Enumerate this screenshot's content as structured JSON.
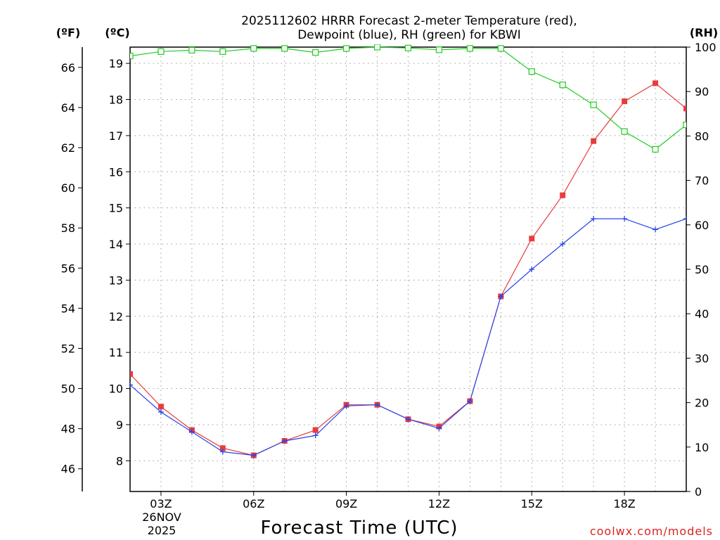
{
  "chart_data": {
    "type": "line",
    "title_line1": "2025112602 HRRR Forecast 2-meter Temperature (red),",
    "title_line2": "Dewpoint (blue), RH (green) for KBWI",
    "xlabel": "Forecast Time (UTC)",
    "credit": "coolwx.com/models",
    "unit_f": "(ºF)",
    "unit_c": "(ºC)",
    "unit_rh": "(RH)",
    "date_label_1": "26NOV",
    "date_label_2": "2025",
    "x_range": [
      2,
      20
    ],
    "x_ticks": [
      3,
      6,
      9,
      12,
      15,
      18
    ],
    "x_tick_labels": [
      "03Z",
      "06Z",
      "09Z",
      "12Z",
      "15Z",
      "18Z"
    ],
    "c_range": [
      7.15,
      19.45
    ],
    "c_ticks": [
      8,
      9,
      10,
      11,
      12,
      13,
      14,
      15,
      16,
      17,
      18,
      19
    ],
    "c_tick_labels": [
      "8",
      "9",
      "10",
      "11",
      "12",
      "13",
      "14",
      "15",
      "16",
      "17",
      "18",
      "19"
    ],
    "f_ticks": [
      46,
      48,
      50,
      52,
      54,
      56,
      58,
      60,
      62,
      64,
      66
    ],
    "f_tick_labels": [
      "46",
      "48",
      "50",
      "52",
      "54",
      "56",
      "58",
      "60",
      "62",
      "64",
      "66"
    ],
    "rh_range": [
      0,
      100
    ],
    "rh_ticks": [
      0,
      10,
      20,
      30,
      40,
      50,
      60,
      70,
      80,
      90,
      100
    ],
    "rh_tick_labels": [
      "0",
      "10",
      "20",
      "30",
      "40",
      "50",
      "60",
      "70",
      "80",
      "90",
      "100"
    ],
    "grid": true,
    "colors": {
      "temperature": "#e83c3c",
      "dewpoint": "#2a45e8",
      "rh": "#22cc22",
      "credit": "#dd2222"
    },
    "x": [
      2,
      3,
      4,
      5,
      6,
      7,
      8,
      9,
      10,
      11,
      12,
      13,
      14,
      15,
      16,
      17,
      18,
      19,
      20
    ],
    "series": [
      {
        "name": "Temperature",
        "axis": "c",
        "marker": "filled-square",
        "values": [
          10.4,
          9.5,
          8.85,
          8.35,
          8.15,
          8.55,
          8.85,
          9.55,
          9.55,
          9.15,
          8.95,
          9.65,
          12.55,
          14.15,
          15.35,
          16.85,
          17.95,
          18.45,
          17.75
        ]
      },
      {
        "name": "Dewpoint",
        "axis": "c",
        "marker": "plus",
        "values": [
          10.1,
          9.35,
          8.8,
          8.25,
          8.15,
          8.55,
          8.7,
          9.52,
          9.55,
          9.15,
          8.9,
          9.65,
          12.55,
          13.3,
          14.0,
          14.7,
          14.7,
          14.4,
          14.7
        ]
      },
      {
        "name": "RH",
        "axis": "rh",
        "marker": "open-square",
        "values": [
          98,
          99,
          99.3,
          99,
          99.7,
          99.7,
          98.8,
          99.7,
          100,
          99.8,
          99.4,
          99.7,
          99.7,
          94.5,
          91.5,
          87,
          81,
          77,
          82.5
        ]
      }
    ]
  }
}
